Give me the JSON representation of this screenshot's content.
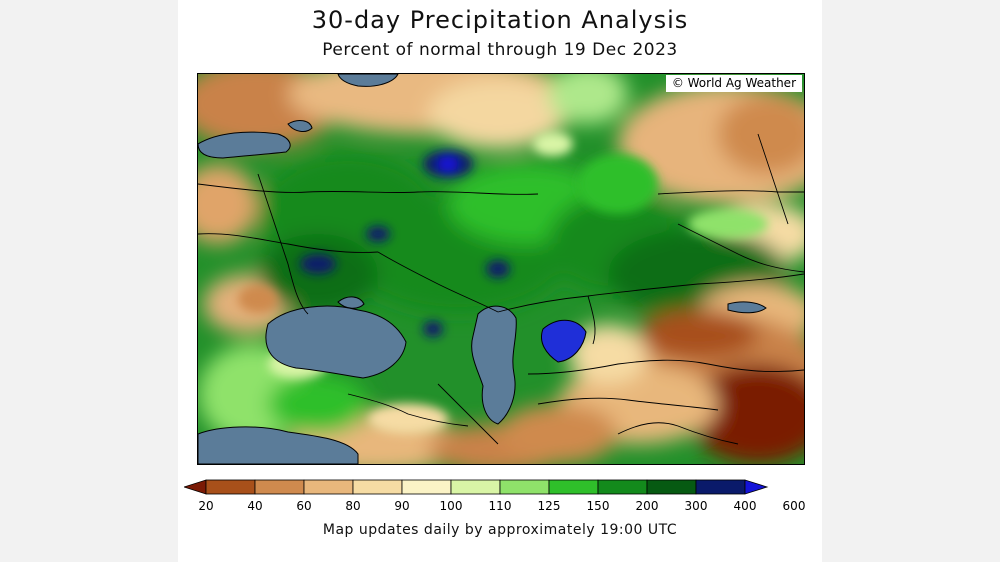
{
  "header": {
    "title": "30-day Precipitation Analysis",
    "subtitle": "Percent of normal through 19 Dec 2023"
  },
  "map": {
    "credit": "© World Ag Weather",
    "water_color": "#5b7c99"
  },
  "legend": {
    "labels": [
      "20",
      "40",
      "60",
      "80",
      "90",
      "100",
      "110",
      "125",
      "150",
      "200",
      "300",
      "400",
      "600"
    ],
    "colors": [
      "#7a1a05",
      "#a8501a",
      "#cf8a4e",
      "#e8b77c",
      "#f6dca4",
      "#fbf3c6",
      "#d9f5a6",
      "#8fe26a",
      "#2fbf2a",
      "#138a1c",
      "#065a12",
      "#0a1a6a",
      "#1414d8"
    ]
  },
  "footer": {
    "note": "Map updates daily by approximately 19:00 UTC"
  }
}
